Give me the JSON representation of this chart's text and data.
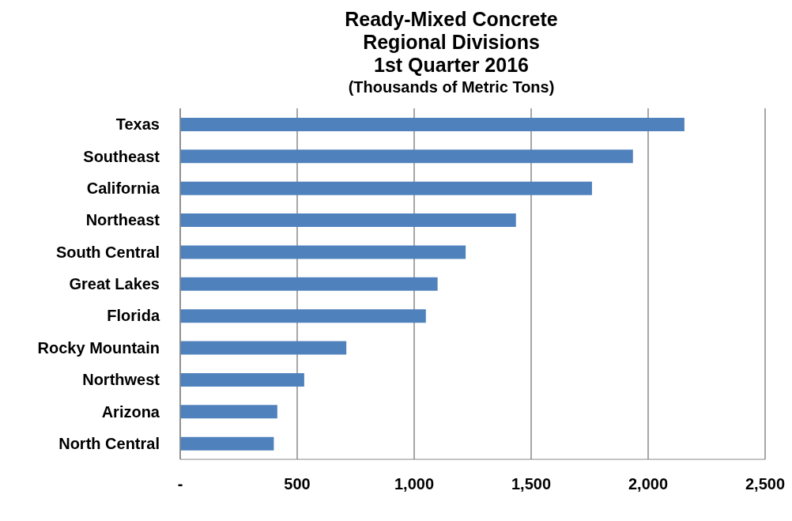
{
  "chart_data": {
    "type": "bar",
    "orientation": "horizontal",
    "title": "Ready-Mixed Concrete\nRegional Divisions\n1st Quarter 2016",
    "subtitle": "(Thousands of Metric Tons)",
    "categories": [
      "Texas",
      "Southeast",
      "California",
      "Northeast",
      "South Central",
      "Great Lakes",
      "Florida",
      "Rocky Mountain",
      "Northwest",
      "Arizona",
      "North Central"
    ],
    "values": [
      2155,
      1935,
      1760,
      1435,
      1220,
      1100,
      1050,
      710,
      530,
      415,
      400
    ],
    "color": "#4f81bd",
    "xlim": [
      0,
      2500
    ],
    "xticks": [
      {
        "value": 0,
        "label": "-"
      },
      {
        "value": 500,
        "label": "500"
      },
      {
        "value": 1000,
        "label": "1,000"
      },
      {
        "value": 1500,
        "label": "1,500"
      },
      {
        "value": 2000,
        "label": "2,000"
      },
      {
        "value": 2500,
        "label": "2,500"
      }
    ],
    "grid": "x",
    "legend": false
  }
}
